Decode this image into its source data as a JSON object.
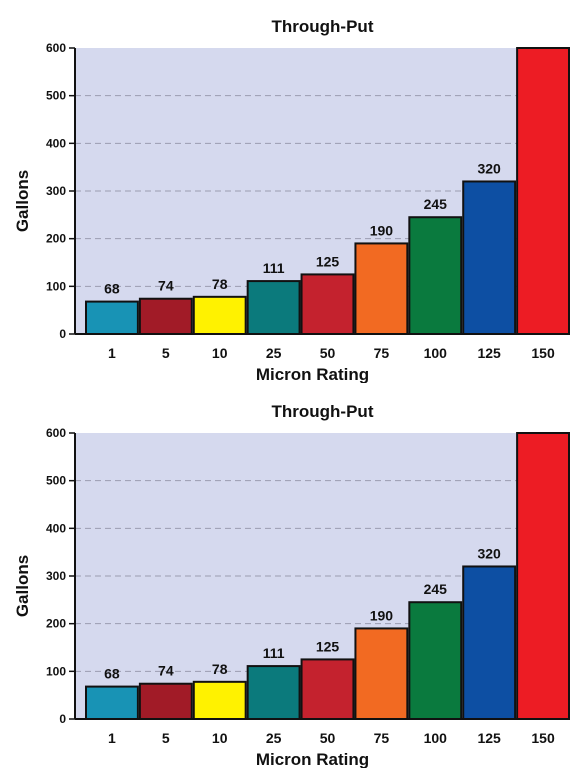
{
  "chart_data": [
    {
      "type": "bar",
      "title": "Through-Put",
      "xlabel": "Micron Rating",
      "ylabel": "Gallons",
      "ylim": [
        0,
        600
      ],
      "yticks": [
        "0",
        "100",
        "200",
        "300",
        "400",
        "500",
        "600"
      ],
      "categories": [
        "1",
        "5",
        "10",
        "25",
        "50",
        "75",
        "100",
        "125",
        "150"
      ],
      "values": [
        68,
        74,
        78,
        111,
        125,
        190,
        245,
        320,
        600
      ],
      "data_labels": [
        "68",
        "74",
        "78",
        "111",
        "125",
        "190",
        "245",
        "320",
        ""
      ],
      "colors": [
        "#1893B5",
        "#A11B27",
        "#FFF200",
        "#0B7A7C",
        "#C4222E",
        "#F26A22",
        "#0A7A3E",
        "#0D4FA3",
        "#ED1C24"
      ],
      "plot_background": "#D5D9EE",
      "grid": true
    },
    {
      "type": "bar",
      "title": "Through-Put",
      "xlabel": "Micron Rating",
      "ylabel": "Gallons",
      "ylim": [
        0,
        600
      ],
      "yticks": [
        "0",
        "100",
        "200",
        "300",
        "400",
        "500",
        "600"
      ],
      "categories": [
        "1",
        "5",
        "10",
        "25",
        "50",
        "75",
        "100",
        "125",
        "150"
      ],
      "values": [
        68,
        74,
        78,
        111,
        125,
        190,
        245,
        320,
        600
      ],
      "data_labels": [
        "68",
        "74",
        "78",
        "111",
        "125",
        "190",
        "245",
        "320",
        ""
      ],
      "colors": [
        "#1893B5",
        "#A11B27",
        "#FFF200",
        "#0B7A7C",
        "#C4222E",
        "#F26A22",
        "#0A7A3E",
        "#0D4FA3",
        "#ED1C24"
      ],
      "plot_background": "#D5D9EE",
      "grid": true
    }
  ]
}
